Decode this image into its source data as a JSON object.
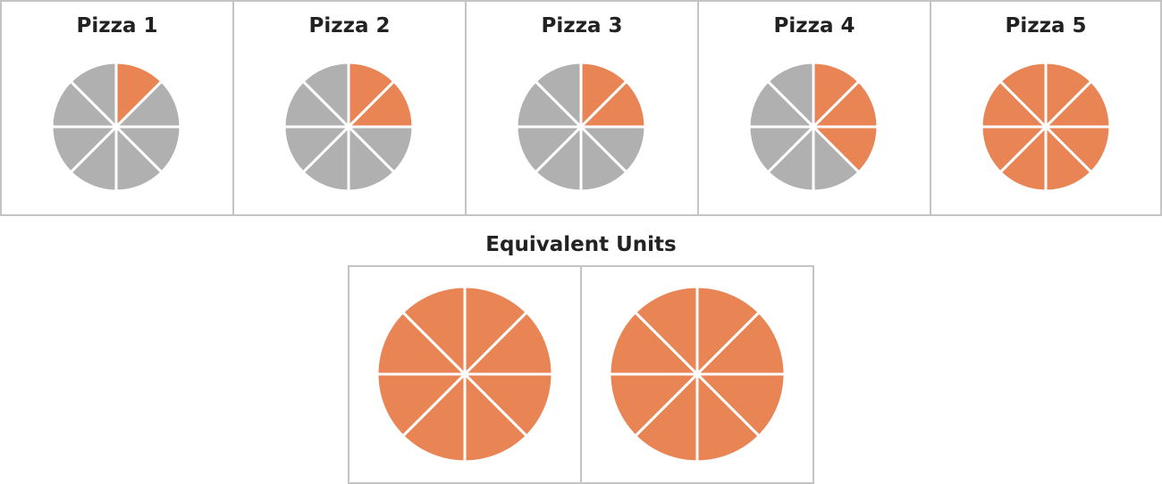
{
  "colors": {
    "shaded": "#E98454",
    "unshaded": "#B0B0B0",
    "divider": "#FFFFFF",
    "border": "#C4C4C4"
  },
  "pizzas": [
    {
      "title": "Pizza 1",
      "slices": 8,
      "shaded": 1
    },
    {
      "title": "Pizza 2",
      "slices": 8,
      "shaded": 2
    },
    {
      "title": "Pizza 3",
      "slices": 8,
      "shaded": 2
    },
    {
      "title": "Pizza 4",
      "slices": 8,
      "shaded": 3
    },
    {
      "title": "Pizza 5",
      "slices": 8,
      "shaded": 8
    }
  ],
  "equivalent": {
    "title": "Equivalent Units",
    "pizzas": [
      {
        "slices": 8,
        "shaded": 8
      },
      {
        "slices": 8,
        "shaded": 8
      }
    ]
  }
}
